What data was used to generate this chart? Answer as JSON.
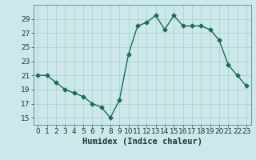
{
  "x": [
    0,
    1,
    2,
    3,
    4,
    5,
    6,
    7,
    8,
    9,
    10,
    11,
    12,
    13,
    14,
    15,
    16,
    17,
    18,
    19,
    20,
    21,
    22,
    23
  ],
  "y": [
    21,
    21,
    20,
    19,
    18.5,
    18,
    17,
    16.5,
    15,
    17.5,
    24,
    28,
    28.5,
    29.5,
    27.5,
    29.5,
    28,
    28,
    28,
    27.5,
    26,
    22.5,
    21,
    19.5
  ],
  "line_color": "#1a6b5a",
  "marker": "D",
  "marker_size": 2.5,
  "bg_color": "#cce8ea",
  "grid_color": "#aacccc",
  "xlabel": "Humidex (Indice chaleur)",
  "ylim": [
    14,
    31
  ],
  "xlim": [
    -0.5,
    23.5
  ],
  "yticks": [
    15,
    17,
    19,
    21,
    23,
    25,
    27,
    29
  ],
  "xticks": [
    0,
    1,
    2,
    3,
    4,
    5,
    6,
    7,
    8,
    9,
    10,
    11,
    12,
    13,
    14,
    15,
    16,
    17,
    18,
    19,
    20,
    21,
    22,
    23
  ],
  "xlabel_fontsize": 7.5,
  "tick_fontsize": 6.5,
  "line_width": 1.0
}
